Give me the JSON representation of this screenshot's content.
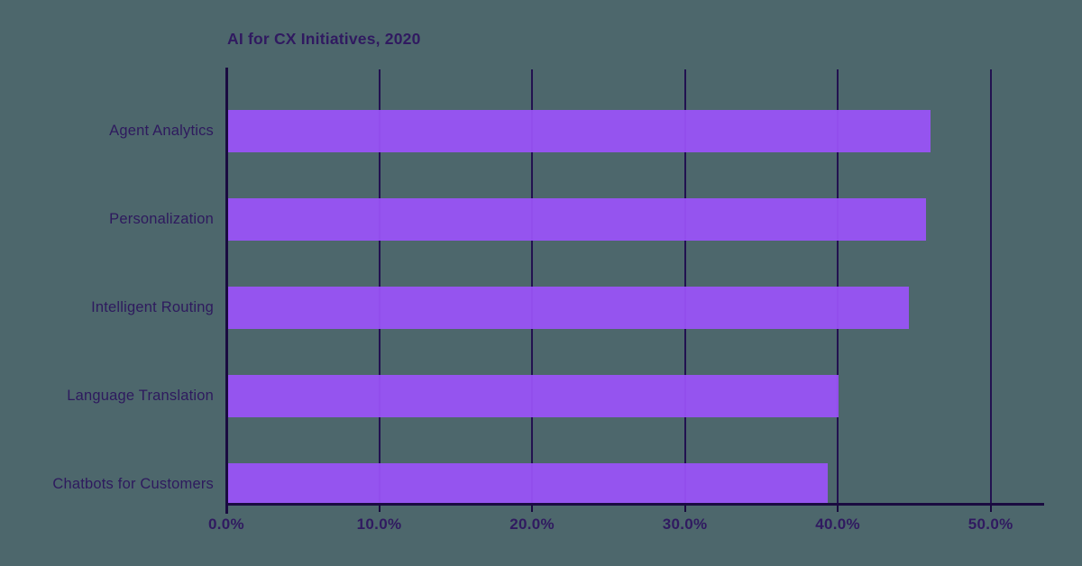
{
  "page": {
    "background_color": "#4d676c"
  },
  "chart_data": {
    "type": "bar",
    "orientation": "horizontal",
    "title": "AI for CX Initiatives, 2020",
    "categories": [
      "Agent Analytics",
      "Personalization",
      "Intelligent Routing",
      "Language Translation",
      "Chatbots for Customers"
    ],
    "values": [
      46.0,
      45.7,
      44.6,
      40.0,
      39.3
    ],
    "value_unit": "%",
    "xlabel": "",
    "ylabel": "",
    "xlim": [
      0,
      53.5
    ],
    "x_ticks": [
      {
        "value": 0,
        "label": "0.0%"
      },
      {
        "value": 10,
        "label": "10.0%"
      },
      {
        "value": 20,
        "label": "20.0%"
      },
      {
        "value": 30,
        "label": "30.0%"
      },
      {
        "value": 40,
        "label": "40.0%"
      },
      {
        "value": 50,
        "label": "50.0%"
      }
    ],
    "grid": "vertical",
    "legend": "none",
    "colors": {
      "bar": "#9b53f9",
      "gridline": "#221150",
      "axis": "#1a0b40",
      "category_text": "#2e1a5e",
      "tick_text": "#301a60",
      "title_text": "#301a60"
    }
  }
}
